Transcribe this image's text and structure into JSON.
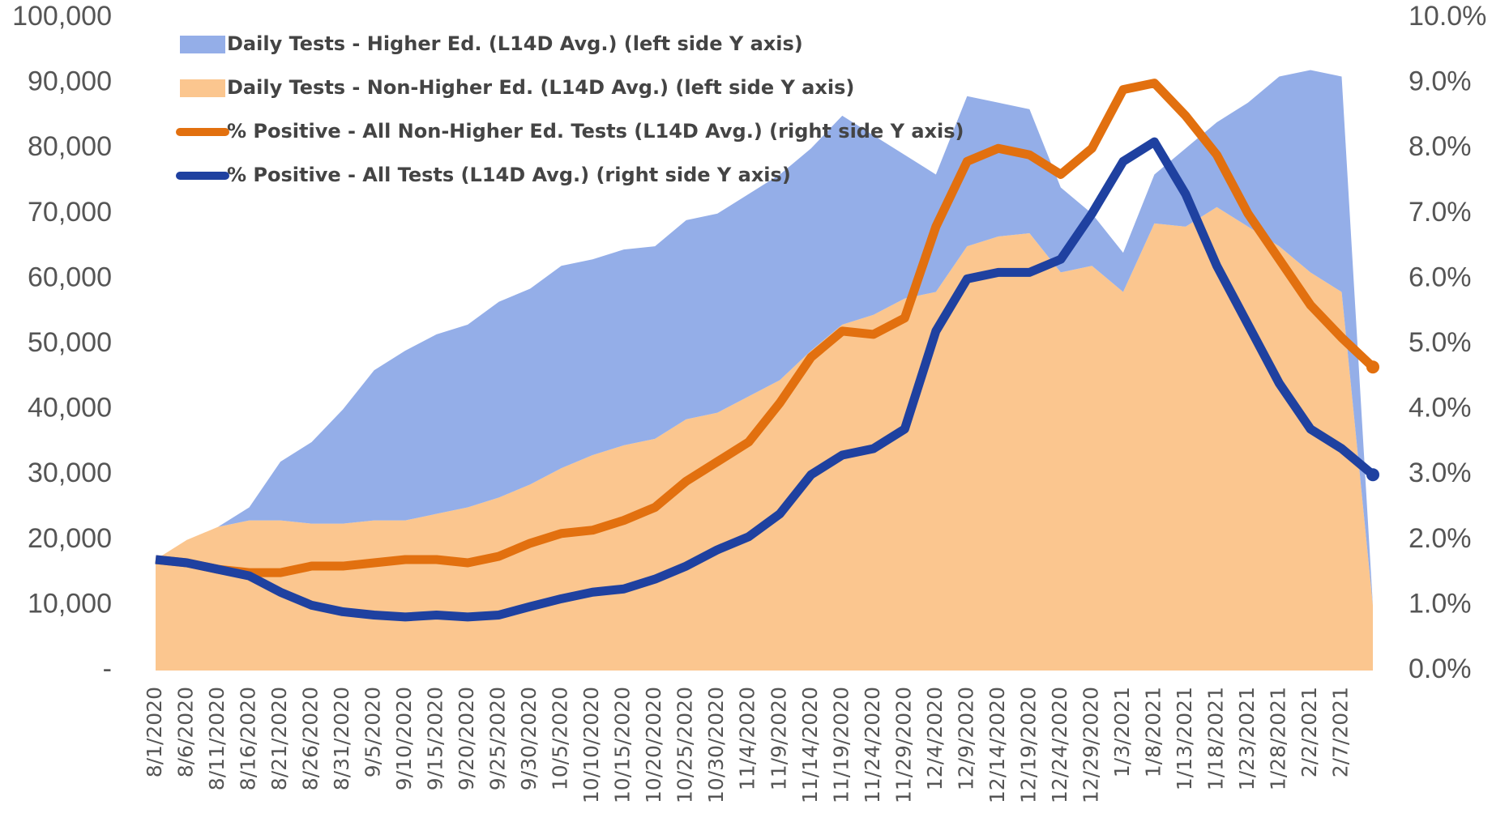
{
  "chart_data": {
    "type": "area-line",
    "stacked": true,
    "categories": [
      "8/1/2020",
      "8/6/2020",
      "8/11/2020",
      "8/16/2020",
      "8/21/2020",
      "8/26/2020",
      "8/31/2020",
      "9/5/2020",
      "9/10/2020",
      "9/15/2020",
      "9/20/2020",
      "9/25/2020",
      "9/30/2020",
      "10/5/2020",
      "10/10/2020",
      "10/15/2020",
      "10/20/2020",
      "10/25/2020",
      "10/30/2020",
      "11/4/2020",
      "11/9/2020",
      "11/14/2020",
      "11/19/2020",
      "11/24/2020",
      "11/29/2020",
      "12/4/2020",
      "12/9/2020",
      "12/14/2020",
      "12/19/2020",
      "12/24/2020",
      "12/29/2020",
      "1/3/2021",
      "1/8/2021",
      "1/13/2021",
      "1/18/2021",
      "1/23/2021",
      "1/28/2021",
      "2/2/2021",
      "2/7/2021",
      null
    ],
    "series": [
      {
        "name": "Daily Tests - Non-Higher Ed. (L14D Avg.) (left side Y axis)",
        "kind": "area",
        "color": "#fbc68f",
        "values": [
          17000,
          20000,
          22000,
          23000,
          23000,
          22500,
          22500,
          23000,
          23000,
          24000,
          25000,
          26500,
          28500,
          31000,
          33000,
          34500,
          35500,
          38500,
          39500,
          42000,
          44500,
          49000,
          53000,
          54500,
          57000,
          58000,
          65000,
          66500,
          67000,
          61000,
          62000,
          58000,
          68500,
          68000,
          71000,
          68000,
          65000,
          61000,
          58000,
          10000
        ]
      },
      {
        "name": "Daily Tests - Higher Ed. (L14D Avg.) (left side Y axis)",
        "kind": "area",
        "color": "#94aee8",
        "values": [
          0,
          0,
          0,
          2000,
          9000,
          12500,
          17500,
          23000,
          26000,
          27500,
          28000,
          30000,
          30000,
          31000,
          30000,
          30000,
          29500,
          30500,
          30500,
          31000,
          31500,
          31000,
          32000,
          27500,
          22000,
          18000,
          23000,
          20500,
          19000,
          13000,
          8000,
          6000,
          7500,
          12000,
          13000,
          19000,
          26000,
          31000,
          33000,
          0
        ]
      },
      {
        "name": "% Positive - All Non-Higher Ed. Tests (L14D Avg.) (right side Y axis)",
        "kind": "line",
        "axis": "y2",
        "color": "#e2700f",
        "values": [
          1.7,
          1.65,
          1.55,
          1.5,
          1.5,
          1.6,
          1.6,
          1.65,
          1.7,
          1.7,
          1.65,
          1.75,
          1.95,
          2.1,
          2.15,
          2.3,
          2.5,
          2.9,
          3.2,
          3.5,
          4.1,
          4.8,
          5.2,
          5.15,
          5.4,
          6.8,
          7.8,
          8.0,
          7.9,
          7.6,
          8.0,
          8.9,
          9.0,
          8.5,
          7.9,
          7.0,
          6.3,
          5.6,
          5.1,
          4.65
        ]
      },
      {
        "name": "% Positive - All Tests (L14D Avg.) (right side Y axis)",
        "kind": "line",
        "axis": "y2",
        "color": "#1f41a0",
        "values": [
          1.7,
          1.65,
          1.55,
          1.45,
          1.2,
          1.0,
          0.9,
          0.85,
          0.82,
          0.85,
          0.82,
          0.85,
          0.98,
          1.1,
          1.2,
          1.25,
          1.4,
          1.6,
          1.85,
          2.05,
          2.4,
          3.0,
          3.3,
          3.4,
          3.7,
          5.2,
          6.0,
          6.1,
          6.1,
          6.3,
          7.0,
          7.8,
          8.1,
          7.3,
          6.2,
          5.3,
          4.4,
          3.7,
          3.4,
          3.0
        ]
      }
    ],
    "legend_order": [
      1,
      0,
      2,
      3
    ],
    "ylim": [
      0,
      100000
    ],
    "yticks": [
      {
        "value": 0,
        "label": "-"
      },
      {
        "value": 10000,
        "label": "10,000"
      },
      {
        "value": 20000,
        "label": "20,000"
      },
      {
        "value": 30000,
        "label": "30,000"
      },
      {
        "value": 40000,
        "label": "40,000"
      },
      {
        "value": 50000,
        "label": "50,000"
      },
      {
        "value": 60000,
        "label": "60,000"
      },
      {
        "value": 70000,
        "label": "70,000"
      },
      {
        "value": 80000,
        "label": "80,000"
      },
      {
        "value": 90000,
        "label": "90,000"
      },
      {
        "value": 100000,
        "label": "100,000"
      }
    ],
    "y2lim": [
      0,
      10
    ],
    "y2ticks": [
      {
        "value": 0,
        "label": "0.0%"
      },
      {
        "value": 1,
        "label": "1.0%"
      },
      {
        "value": 2,
        "label": "2.0%"
      },
      {
        "value": 3,
        "label": "3.0%"
      },
      {
        "value": 4,
        "label": "4.0%"
      },
      {
        "value": 5,
        "label": "5.0%"
      },
      {
        "value": 6,
        "label": "6.0%"
      },
      {
        "value": 7,
        "label": "7.0%"
      },
      {
        "value": 8,
        "label": "8.0%"
      },
      {
        "value": 9,
        "label": "9.0%"
      },
      {
        "value": 10,
        "label": "10.0%"
      }
    ],
    "grid": false
  }
}
